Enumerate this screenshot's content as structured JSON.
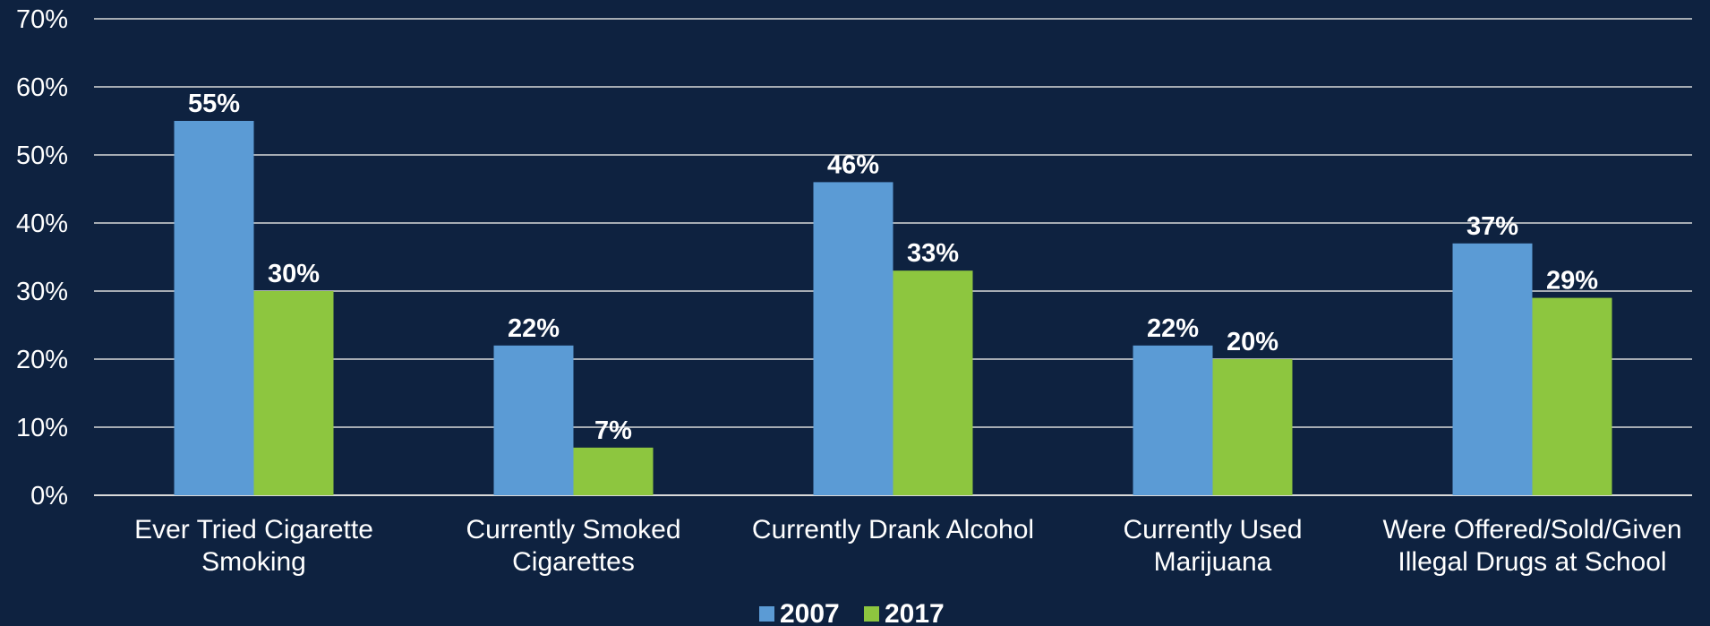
{
  "chart_data": {
    "type": "bar",
    "title": "",
    "xlabel": "",
    "ylabel": "",
    "ylim": [
      0,
      70
    ],
    "yticks": [
      "0%",
      "10%",
      "20%",
      "30%",
      "40%",
      "50%",
      "60%",
      "70%"
    ],
    "grid": true,
    "legend_position": "bottom-center",
    "categories": [
      [
        "Ever Tried Cigarette",
        "Smoking"
      ],
      [
        "Currently Smoked",
        "Cigarettes"
      ],
      [
        "Currently Drank Alcohol"
      ],
      [
        "Currently Used",
        "Marijuana"
      ],
      [
        "Were Offered/Sold/Given",
        "Illegal Drugs at School"
      ]
    ],
    "series": [
      {
        "name": "2007",
        "color": "#5b9bd5",
        "values": [
          55,
          22,
          46,
          22,
          37
        ],
        "labels": [
          "55%",
          "22%",
          "46%",
          "22%",
          "37%"
        ]
      },
      {
        "name": "2017",
        "color": "#8dc63f",
        "values": [
          30,
          7,
          33,
          20,
          29
        ],
        "labels": [
          "30%",
          "7%",
          "33%",
          "20%",
          "29%"
        ]
      }
    ]
  }
}
